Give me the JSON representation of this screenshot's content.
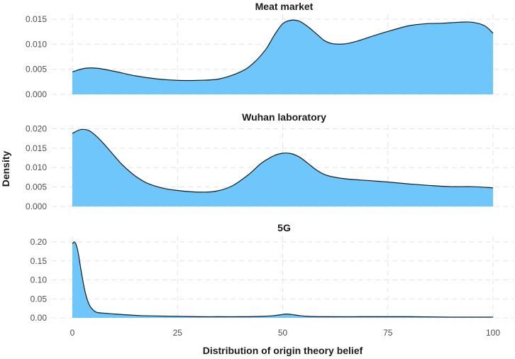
{
  "chart_data": {
    "type": "area",
    "xlabel": "Distribution of origin theory belief",
    "ylabel": "Density",
    "xlim": [
      0,
      100
    ],
    "x_ticks": [
      0,
      25,
      50,
      75,
      100
    ],
    "grid": true,
    "fill_color": "#6EC6FA",
    "line_color": "#1A1A1A",
    "panels": [
      {
        "title": "Meat market",
        "ylim": [
          0,
          0.016
        ],
        "y_ticks": [
          "0.000",
          "0.005",
          "0.010",
          "0.015"
        ],
        "x": [
          0,
          3,
          6,
          10,
          15,
          20,
          25,
          30,
          35,
          40,
          43,
          46,
          48,
          50,
          52,
          54,
          56,
          58,
          60,
          62,
          65,
          68,
          72,
          76,
          80,
          84,
          88,
          92,
          95,
          98,
          100
        ],
        "y": [
          0.0045,
          0.0052,
          0.0052,
          0.0046,
          0.0037,
          0.0031,
          0.0028,
          0.0028,
          0.0031,
          0.0045,
          0.0062,
          0.009,
          0.0118,
          0.0141,
          0.0148,
          0.0146,
          0.0135,
          0.0121,
          0.0107,
          0.0101,
          0.0101,
          0.0107,
          0.0118,
          0.0128,
          0.0137,
          0.0141,
          0.0142,
          0.0144,
          0.0144,
          0.0137,
          0.0122
        ]
      },
      {
        "title": "Wuhan laboratory",
        "ylim": [
          0,
          0.021
        ],
        "y_ticks": [
          "0.000",
          "0.005",
          "0.010",
          "0.015",
          "0.020"
        ],
        "x": [
          0,
          2,
          4,
          6,
          8,
          10,
          12,
          15,
          18,
          22,
          26,
          30,
          34,
          38,
          42,
          45,
          48,
          50,
          52,
          54,
          56,
          58,
          60,
          62,
          65,
          70,
          75,
          80,
          85,
          90,
          95,
          100
        ],
        "y": [
          0.0188,
          0.0198,
          0.0195,
          0.0178,
          0.0155,
          0.013,
          0.0106,
          0.0078,
          0.0059,
          0.0046,
          0.004,
          0.0037,
          0.0039,
          0.0053,
          0.0083,
          0.0112,
          0.0131,
          0.0137,
          0.0136,
          0.0127,
          0.0111,
          0.0094,
          0.0082,
          0.0076,
          0.0071,
          0.0067,
          0.0063,
          0.0058,
          0.0054,
          0.0051,
          0.0051,
          0.0048
        ]
      },
      {
        "title": "5G",
        "ylim": [
          0,
          0.215
        ],
        "y_ticks": [
          "0.00",
          "0.05",
          "0.10",
          "0.15",
          "0.20"
        ],
        "x": [
          0,
          0.5,
          1,
          1.5,
          2,
          3,
          4,
          5,
          6,
          8,
          10,
          13,
          16,
          20,
          25,
          30,
          35,
          40,
          45,
          48,
          50,
          51,
          52,
          54,
          56,
          60,
          70,
          80,
          90,
          95,
          100
        ],
        "y": [
          0.195,
          0.2,
          0.19,
          0.165,
          0.13,
          0.07,
          0.035,
          0.02,
          0.014,
          0.012,
          0.01,
          0.008,
          0.006,
          0.005,
          0.004,
          0.003,
          0.003,
          0.003,
          0.004,
          0.006,
          0.009,
          0.01,
          0.009,
          0.006,
          0.004,
          0.003,
          0.003,
          0.003,
          0.002,
          0.002,
          0.002
        ]
      }
    ]
  }
}
